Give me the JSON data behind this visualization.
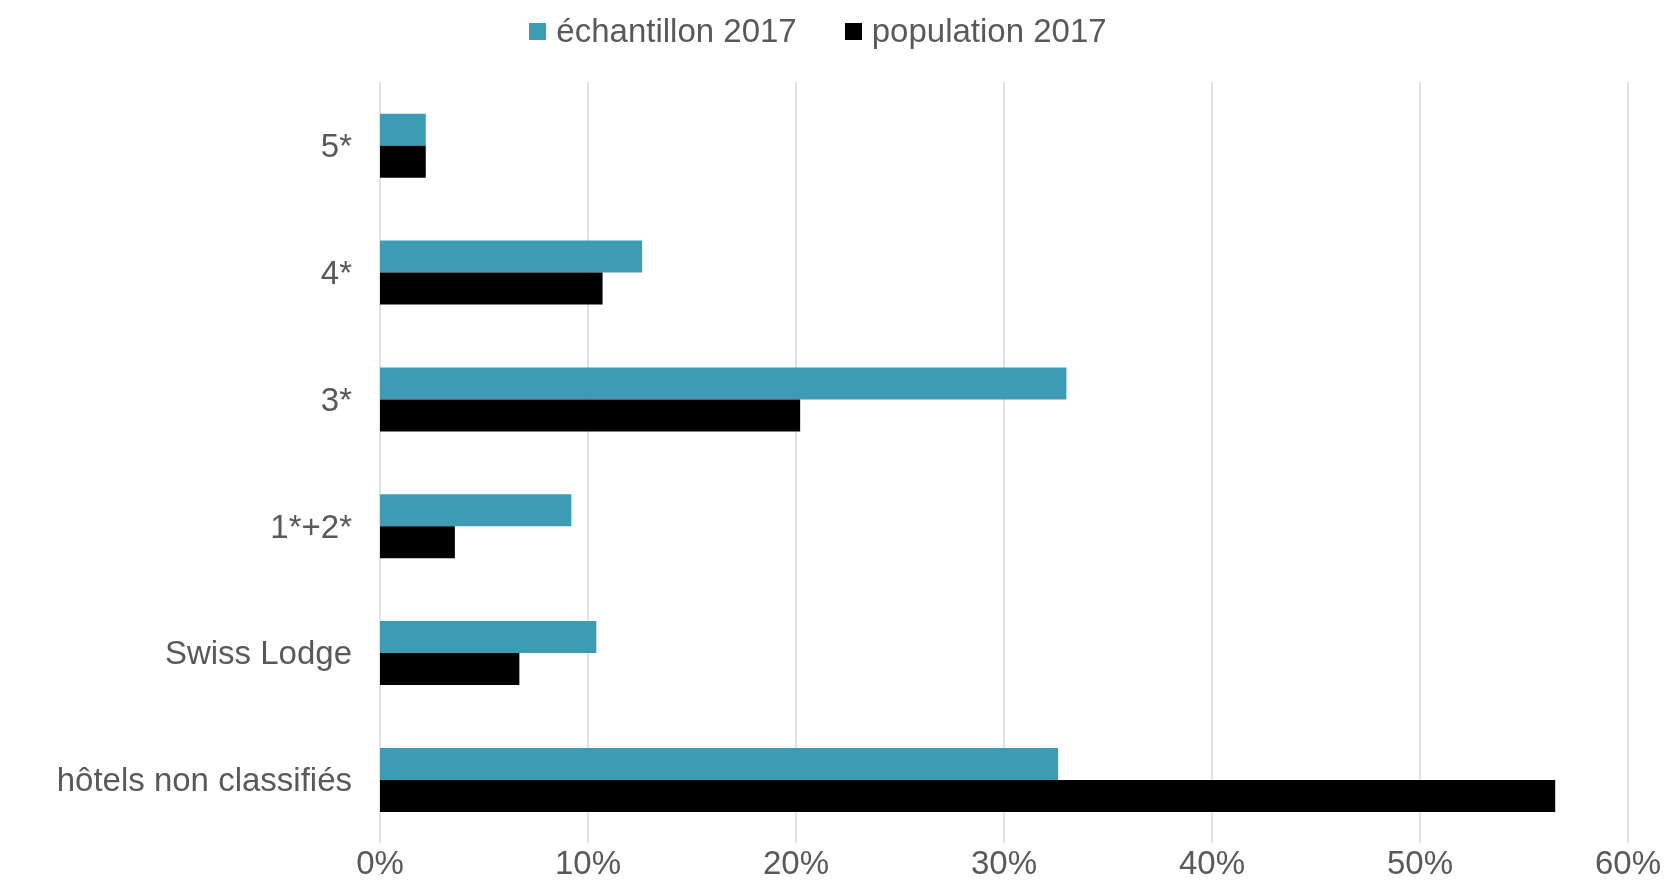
{
  "chart_data": {
    "type": "bar",
    "orientation": "horizontal",
    "categories": [
      "5*",
      "4*",
      "3*",
      "1*+2*",
      "Swiss Lodge",
      "hôtels non classifiés"
    ],
    "series": [
      {
        "name": "échantillon 2017",
        "color": "#3d9bb4",
        "values": [
          2.2,
          12.6,
          33.0,
          9.2,
          10.4,
          32.6
        ]
      },
      {
        "name": "population 2017",
        "color": "#000000",
        "values": [
          2.2,
          10.7,
          20.2,
          3.6,
          6.7,
          56.5
        ]
      }
    ],
    "xlim": [
      0,
      60
    ],
    "xticks": [
      {
        "value": 0,
        "label": "0%"
      },
      {
        "value": 10,
        "label": "10%"
      },
      {
        "value": 20,
        "label": "20%"
      },
      {
        "value": 30,
        "label": "30%"
      },
      {
        "value": 40,
        "label": "40%"
      },
      {
        "value": 50,
        "label": "50%"
      },
      {
        "value": 60,
        "label": "60%"
      }
    ],
    "grid": "x",
    "legend": "top"
  }
}
